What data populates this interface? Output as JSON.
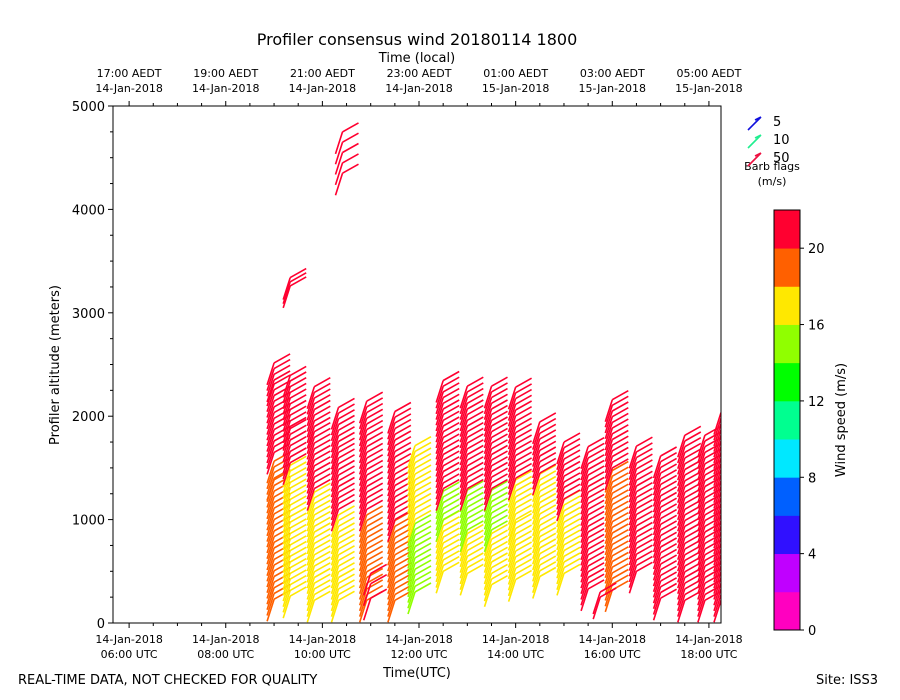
{
  "chart_data": {
    "type": "wind-barb-profile",
    "title": "Profiler consensus wind 20180114 1800",
    "xlabel": "Time(UTC)",
    "ylabel": "Profiler altitude (meters)",
    "top_axis_label": "Time (local)",
    "ylim": [
      0,
      5000
    ],
    "yticks": [
      0,
      1000,
      2000,
      3000,
      4000,
      5000
    ],
    "xlim": [
      "2018-01-14 05:40",
      "2018-01-14 18:15"
    ],
    "bottom_ticks": [
      {
        "line1": "14-Jan-2018",
        "line2": "06:00 UTC",
        "time": "2018-01-14 06:00"
      },
      {
        "line1": "14-Jan-2018",
        "line2": "08:00 UTC",
        "time": "2018-01-14 08:00"
      },
      {
        "line1": "14-Jan-2018",
        "line2": "10:00 UTC",
        "time": "2018-01-14 10:00"
      },
      {
        "line1": "14-Jan-2018",
        "line2": "12:00 UTC",
        "time": "2018-01-14 12:00"
      },
      {
        "line1": "14-Jan-2018",
        "line2": "14:00 UTC",
        "time": "2018-01-14 14:00"
      },
      {
        "line1": "14-Jan-2018",
        "line2": "16:00 UTC",
        "time": "2018-01-14 16:00"
      },
      {
        "line1": "14-Jan-2018",
        "line2": "18:00 UTC",
        "time": "2018-01-14 18:00"
      }
    ],
    "top_ticks": [
      {
        "line1": "17:00 AEDT",
        "line2": "14-Jan-2018",
        "time": "2018-01-14 06:00"
      },
      {
        "line1": "19:00 AEDT",
        "line2": "14-Jan-2018",
        "time": "2018-01-14 08:00"
      },
      {
        "line1": "21:00 AEDT",
        "line2": "14-Jan-2018",
        "time": "2018-01-14 10:00"
      },
      {
        "line1": "23:00 AEDT",
        "line2": "14-Jan-2018",
        "time": "2018-01-14 12:00"
      },
      {
        "line1": "01:00 AEDT",
        "line2": "15-Jan-2018",
        "time": "2018-01-14 14:00"
      },
      {
        "line1": "03:00 AEDT",
        "line2": "15-Jan-2018",
        "time": "2018-01-14 16:00"
      },
      {
        "line1": "05:00 AEDT",
        "line2": "15-Jan-2018",
        "time": "2018-01-14 18:00"
      }
    ],
    "barb_legend": {
      "title_line1": "Barb flags",
      "title_line2": "(m/s)",
      "entries": [
        {
          "label": "5",
          "color": "#1010dd"
        },
        {
          "label": "10",
          "color": "#20ee90"
        },
        {
          "label": "50",
          "color": "#ee1040"
        }
      ]
    },
    "colorbar": {
      "label": "Wind speed (m/s)",
      "range": [
        0,
        22
      ],
      "ticks": [
        "0",
        "4",
        "8",
        "12",
        "16",
        "20"
      ],
      "tick_values": [
        0,
        4,
        8,
        12,
        16,
        20
      ],
      "colors": [
        "#ff00c0",
        "#c000ff",
        "#3010ff",
        "#0060ff",
        "#00e8ff",
        "#00ff90",
        "#00ff00",
        "#90ff00",
        "#ffe800",
        "#ff6000",
        "#ff0030"
      ]
    },
    "profiles": [
      {
        "time": "09:00",
        "segments": [
          {
            "from": 230,
            "to": 1400,
            "speed": 18.5
          },
          {
            "from": 1400,
            "to": 1600,
            "speed": 18.5
          },
          {
            "from": 1650,
            "to": 2350,
            "speed": 21.5
          },
          {
            "from": 2350,
            "to": 2560,
            "speed": 21.5
          }
        ]
      },
      {
        "time": "09:20",
        "segments": [
          {
            "from": 260,
            "to": 1550,
            "speed": 17
          },
          {
            "from": 1550,
            "to": 1900,
            "speed": 20
          },
          {
            "from": 1900,
            "to": 2450,
            "speed": 21.5
          }
        ]
      },
      {
        "time": "09:50",
        "segments": [
          {
            "from": 220,
            "to": 1300,
            "speed": 17
          },
          {
            "from": 1300,
            "to": 1900,
            "speed": 20
          },
          {
            "from": 1900,
            "to": 2320,
            "speed": 21.5
          }
        ]
      },
      {
        "time": "10:20",
        "segments": [
          {
            "from": 220,
            "to": 1100,
            "speed": 17
          },
          {
            "from": 1100,
            "to": 1700,
            "speed": 20
          },
          {
            "from": 1700,
            "to": 2120,
            "speed": 21.5
          }
        ]
      },
      {
        "time": "10:55",
        "segments": [
          {
            "from": 220,
            "to": 1100,
            "speed": 19
          },
          {
            "from": 1100,
            "to": 2180,
            "speed": 20
          }
        ]
      },
      {
        "time": "11:30",
        "segments": [
          {
            "from": 220,
            "to": 1000,
            "speed": 19
          },
          {
            "from": 1000,
            "to": 2060,
            "speed": 20
          }
        ]
      },
      {
        "time": "11:55",
        "segments": [
          {
            "from": 300,
            "to": 1000,
            "speed": 15
          },
          {
            "from": 1000,
            "to": 1750,
            "speed": 17
          }
        ]
      },
      {
        "time": "12:30",
        "segments": [
          {
            "from": 500,
            "to": 1000,
            "speed": 17
          },
          {
            "from": 1000,
            "to": 1300,
            "speed": 15
          },
          {
            "from": 1300,
            "to": 2380,
            "speed": 20
          }
        ]
      },
      {
        "time": "13:00",
        "segments": [
          {
            "from": 480,
            "to": 900,
            "speed": 17
          },
          {
            "from": 900,
            "to": 1300,
            "speed": 14
          },
          {
            "from": 1300,
            "to": 2320,
            "speed": 20
          }
        ]
      },
      {
        "time": "13:30",
        "segments": [
          {
            "from": 370,
            "to": 900,
            "speed": 17
          },
          {
            "from": 900,
            "to": 1300,
            "speed": 15
          },
          {
            "from": 1300,
            "to": 2320,
            "speed": 20
          }
        ]
      },
      {
        "time": "14:00",
        "segments": [
          {
            "from": 420,
            "to": 1000,
            "speed": 17
          },
          {
            "from": 1000,
            "to": 1400,
            "speed": 16
          },
          {
            "from": 1400,
            "to": 2320,
            "speed": 20
          }
        ]
      },
      {
        "time": "14:30",
        "segments": [
          {
            "from": 450,
            "to": 1450,
            "speed": 17
          },
          {
            "from": 1450,
            "to": 1960,
            "speed": 20
          }
        ]
      },
      {
        "time": "15:00",
        "segments": [
          {
            "from": 480,
            "to": 1200,
            "speed": 17
          },
          {
            "from": 1200,
            "to": 1760,
            "speed": 20
          }
        ]
      },
      {
        "time": "15:30",
        "segments": [
          {
            "from": 330,
            "to": 1760,
            "speed": 20
          }
        ]
      },
      {
        "time": "16:00",
        "segments": [
          {
            "from": 320,
            "to": 1500,
            "speed": 19
          },
          {
            "from": 1500,
            "to": 2190,
            "speed": 20
          }
        ]
      },
      {
        "time": "16:30",
        "segments": [
          {
            "from": 500,
            "to": 1740,
            "speed": 20
          }
        ]
      },
      {
        "time": "17:00",
        "segments": [
          {
            "from": 240,
            "to": 1620,
            "speed": 20.5
          }
        ]
      },
      {
        "time": "17:30",
        "segments": [
          {
            "from": 220,
            "to": 1860,
            "speed": 21.5
          }
        ]
      },
      {
        "time": "17:55",
        "segments": [
          {
            "from": 220,
            "to": 1860,
            "speed": 21.5
          }
        ]
      },
      {
        "time": "18:15",
        "segments": [
          {
            "from": 220,
            "to": 2070,
            "speed": 21.5
          }
        ]
      }
    ],
    "isolated_barbs": [
      {
        "time": "09:20",
        "height": 3340,
        "speed": 21.5
      },
      {
        "time": "09:20",
        "height": 3300,
        "speed": 21.5
      },
      {
        "time": "09:20",
        "height": 3260,
        "speed": 21.5
      },
      {
        "time": "10:25",
        "height": 4750,
        "speed": 21.5
      },
      {
        "time": "10:25",
        "height": 4650,
        "speed": 21.5
      },
      {
        "time": "10:25",
        "height": 4550,
        "speed": 21.5
      },
      {
        "time": "10:25",
        "height": 4450,
        "speed": 21.5
      },
      {
        "time": "10:25",
        "height": 4350,
        "speed": 21.5
      },
      {
        "time": "11:00",
        "height": 480,
        "speed": 20.5
      },
      {
        "time": "11:00",
        "height": 380,
        "speed": 20.5
      },
      {
        "time": "11:00",
        "height": 240,
        "speed": 20.5
      },
      {
        "time": "15:45",
        "height": 300,
        "speed": 21
      },
      {
        "time": "15:45",
        "height": 250,
        "speed": 21
      }
    ]
  },
  "footer": {
    "quality_note": "REAL-TIME DATA, NOT CHECKED FOR QUALITY",
    "site": "Site: ISS3"
  }
}
